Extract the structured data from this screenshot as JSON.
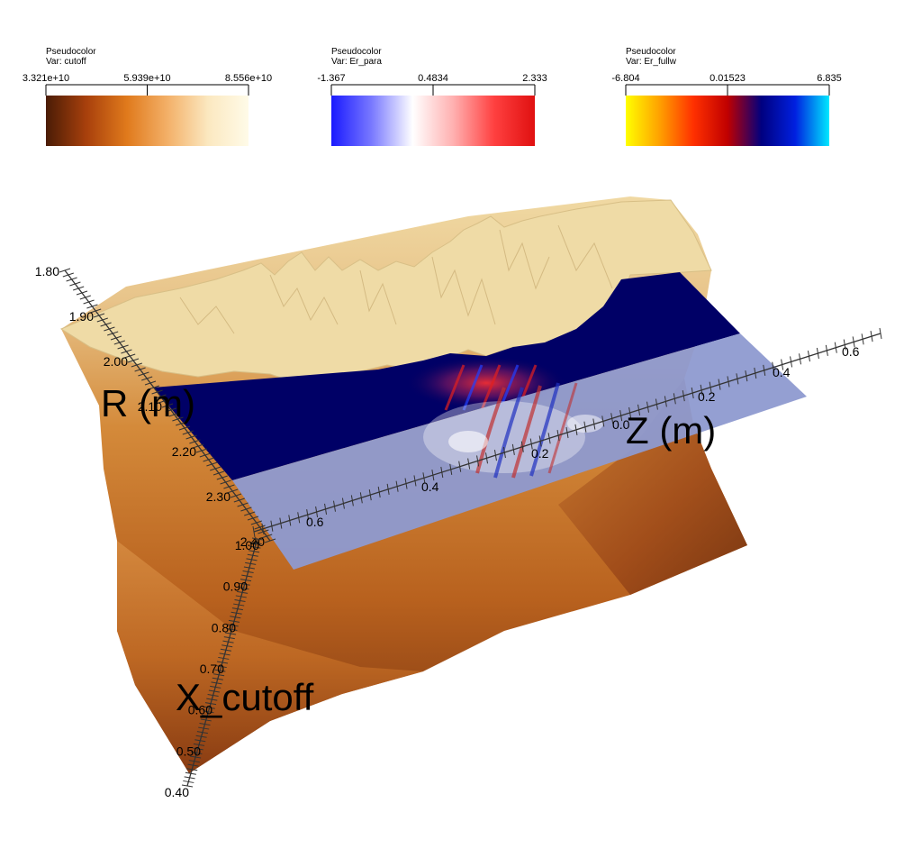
{
  "legends": [
    {
      "header": "Pseudocolor",
      "var_label": "Var: cutoff",
      "ticks": [
        "3.321e+10",
        "5.939e+10",
        "8.556e+10"
      ],
      "colors": [
        "#4a1c06",
        "#a8400c",
        "#e07a1c",
        "#f3b068",
        "#fbe8c0",
        "#fffbe8"
      ]
    },
    {
      "header": "Pseudocolor",
      "var_label": "Var: Er_para",
      "ticks": [
        "-1.367",
        "0.4834",
        "2.333"
      ],
      "colors": [
        "#1a1aff",
        "#7a7aff",
        "#ffffff",
        "#ffb0b0",
        "#ff4040",
        "#e01010"
      ]
    },
    {
      "header": "Pseudocolor",
      "var_label": "Var: Er_fullw",
      "ticks": [
        "-6.804",
        "0.01523",
        "6.835"
      ],
      "colors": [
        "#ffff00",
        "#ffa000",
        "#ff3000",
        "#c00000",
        "#000080",
        "#0020e0",
        "#00e8ff"
      ]
    }
  ],
  "axes": {
    "r_title": "R (m)",
    "z_title": "Z (m)",
    "x_title": "X_cutoff",
    "r_ticks": [
      "1.80",
      "1.90",
      "2.00",
      "2.10",
      "2.20",
      "2.30",
      "2.40"
    ],
    "x_ticks": [
      "1.00",
      "0.90",
      "0.80",
      "0.70",
      "0.60",
      "0.50",
      "0.40"
    ],
    "z_front_ticks": [
      "0.6",
      "0.4",
      "0.2",
      "0.0",
      "0.2",
      "0.4",
      "0.6"
    ]
  }
}
